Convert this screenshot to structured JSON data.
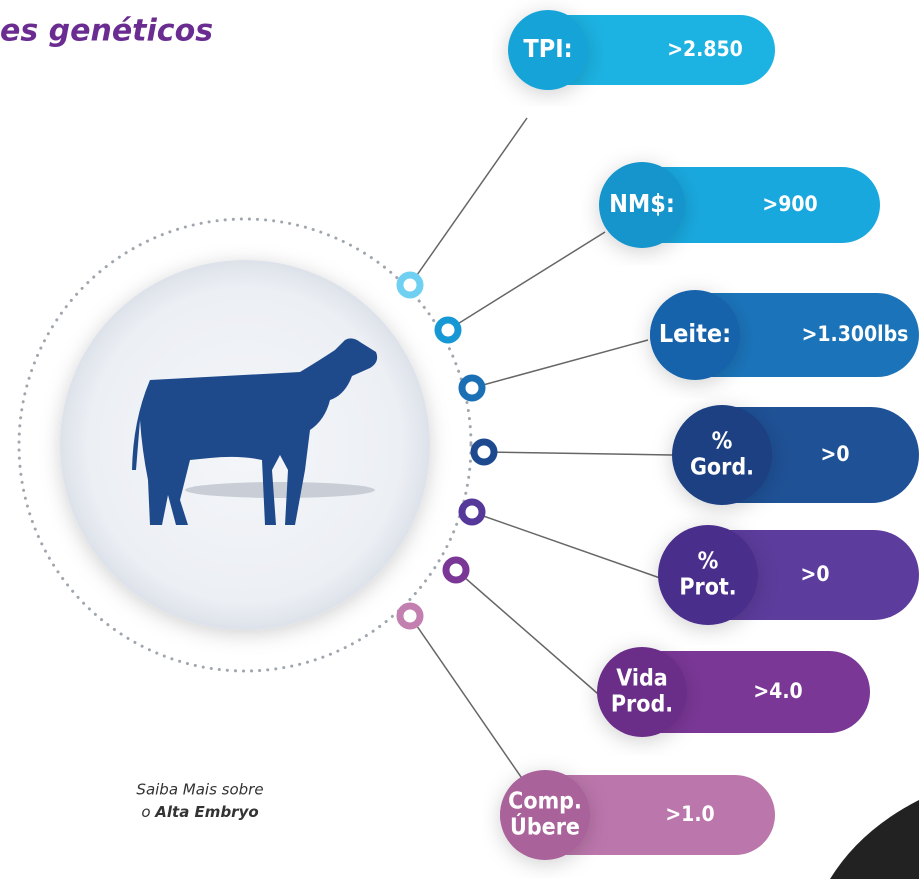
{
  "header": {
    "title": "es genéticos"
  },
  "nodes": [
    {
      "label": [
        "TPI:"
      ],
      "value": ">2.850"
    },
    {
      "label": [
        "NM$:"
      ],
      "value": ">900"
    },
    {
      "label": [
        "Leite:"
      ],
      "value": ">1.300lbs"
    },
    {
      "label": [
        "%",
        "Gord."
      ],
      "value": ">0"
    },
    {
      "label": [
        "%",
        "Prot."
      ],
      "value": ">0"
    },
    {
      "label": [
        "Vida",
        "Prod."
      ],
      "value": ">4.0"
    },
    {
      "label": [
        "Comp.",
        "Úbere"
      ],
      "value": ">1.0"
    }
  ],
  "footer": {
    "line1": "Saiba Mais sobre",
    "line2_prefix": "o",
    "line2_bold": "Alta Embryo"
  }
}
